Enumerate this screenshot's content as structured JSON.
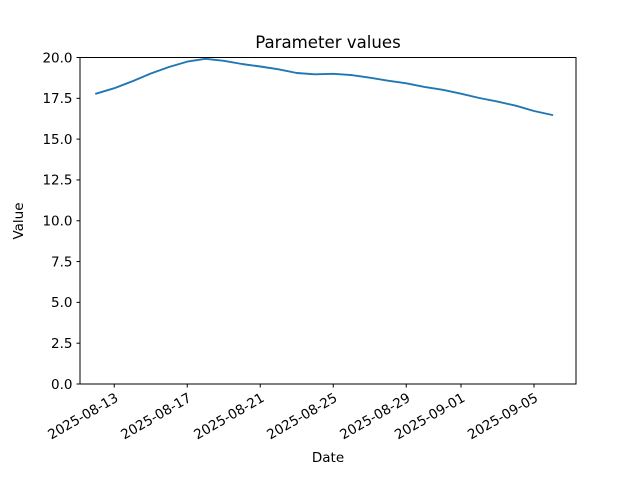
{
  "chart_data": {
    "type": "line",
    "title": "Parameter values",
    "xlabel": "Date",
    "ylabel": "Value",
    "ylim": [
      0,
      20
    ],
    "grid": false,
    "legend": null,
    "line_color": "#1f77b4",
    "background_color": "#ffffff",
    "y_tick_labels": [
      "0.0",
      "2.5",
      "5.0",
      "7.5",
      "10.0",
      "12.5",
      "15.0",
      "17.5",
      "20.0"
    ],
    "y_ticks": [
      0.0,
      2.5,
      5.0,
      7.5,
      10.0,
      12.5,
      15.0,
      17.5,
      20.0
    ],
    "x_tick_labels": [
      "2025-08-13",
      "2025-08-17",
      "2025-08-21",
      "2025-08-25",
      "2025-08-29",
      "2025-09-01",
      "2025-09-05"
    ],
    "x_tick_rotation_deg": 30,
    "series": [
      {
        "name": "parameter-values",
        "x": [
          "2025-08-12",
          "2025-08-13",
          "2025-08-14",
          "2025-08-15",
          "2025-08-16",
          "2025-08-17",
          "2025-08-18",
          "2025-08-19",
          "2025-08-20",
          "2025-08-21",
          "2025-08-22",
          "2025-08-23",
          "2025-08-24",
          "2025-08-25",
          "2025-08-26",
          "2025-08-27",
          "2025-08-28",
          "2025-08-29",
          "2025-08-30",
          "2025-08-31",
          "2025-09-01",
          "2025-09-02",
          "2025-09-03",
          "2025-09-04",
          "2025-09-05",
          "2025-09-06"
        ],
        "y": [
          17.78,
          18.12,
          18.55,
          19.02,
          19.42,
          19.75,
          19.92,
          19.8,
          19.6,
          19.45,
          19.28,
          19.05,
          18.97,
          19.0,
          18.92,
          18.76,
          18.58,
          18.42,
          18.2,
          18.02,
          17.78,
          17.52,
          17.3,
          17.05,
          16.72,
          16.48
        ]
      }
    ]
  }
}
